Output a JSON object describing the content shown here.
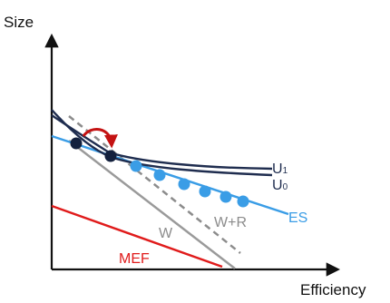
{
  "axes": {
    "y_label": "Size",
    "x_label": "Efficiency"
  },
  "labels": {
    "u1": {
      "main": "U",
      "sub": "1"
    },
    "u0": {
      "main": "U",
      "sub": "0"
    },
    "es": "ES",
    "w_plus_r": "W+R",
    "w": "W",
    "mef": "MEF"
  },
  "colors": {
    "axis": "#111111",
    "u_curves": "#1f2d4f",
    "es_line": "#3a9de6",
    "es_points": "#3a9de6",
    "w_line": "#9a9a9a",
    "w_plus_r_line": "#8c8c8c",
    "mef_line": "#e01b1b",
    "arrow": "#c41212",
    "tangency_points": "#13203d"
  },
  "markers": {
    "es_point_count": 6,
    "tangency_point_count": 2
  }
}
